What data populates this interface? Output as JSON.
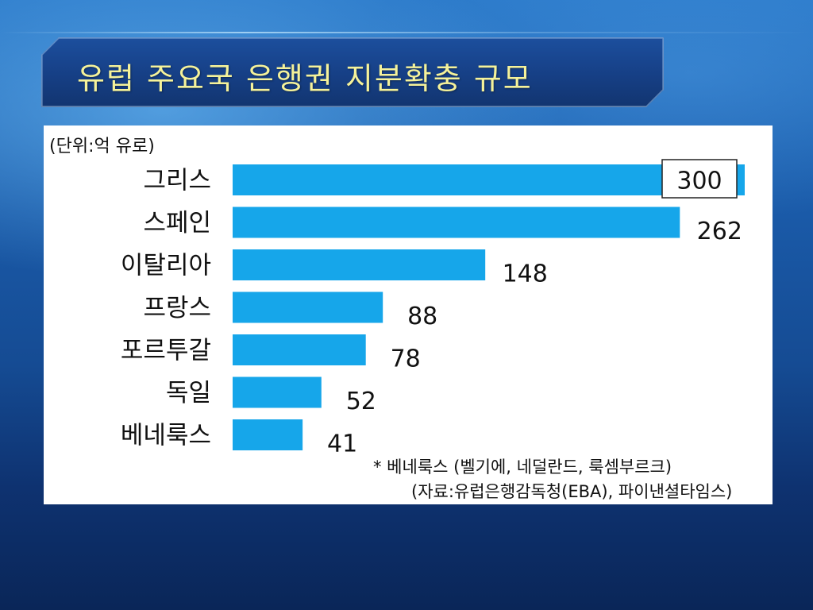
{
  "slide": {
    "title": "유럽 주요국 은행권 지분확충 규모"
  },
  "unit_label": "(단위:억 유로)",
  "notes": {
    "line1": "* 베네룩스 (벨기에, 네덜란드, 룩셈부르크)",
    "line2": "(자료:유럽은행감독청(EBA), 파이낸셜타임스)"
  },
  "colors": {
    "bar": "#16a6ea",
    "title_text": "#f5f29a",
    "background": "#1a5aa8",
    "title_bar": "#163f85"
  },
  "chart_data": {
    "type": "bar",
    "orientation": "horizontal",
    "title": "유럽 주요국 은행권 지분확충 규모",
    "unit": "(단위:억 유로)",
    "categories": [
      "그리스",
      "스페인",
      "이탈리아",
      "프랑스",
      "포르투갈",
      "독일",
      "베네룩스"
    ],
    "values": [
      300,
      262,
      148,
      88,
      78,
      52,
      41
    ],
    "value_labels": [
      "300",
      "262",
      "148",
      "88",
      "78",
      "52",
      "41"
    ],
    "xlim": [
      0,
      300
    ],
    "grid": false,
    "legend": "none",
    "highlighted_category": "그리스"
  }
}
